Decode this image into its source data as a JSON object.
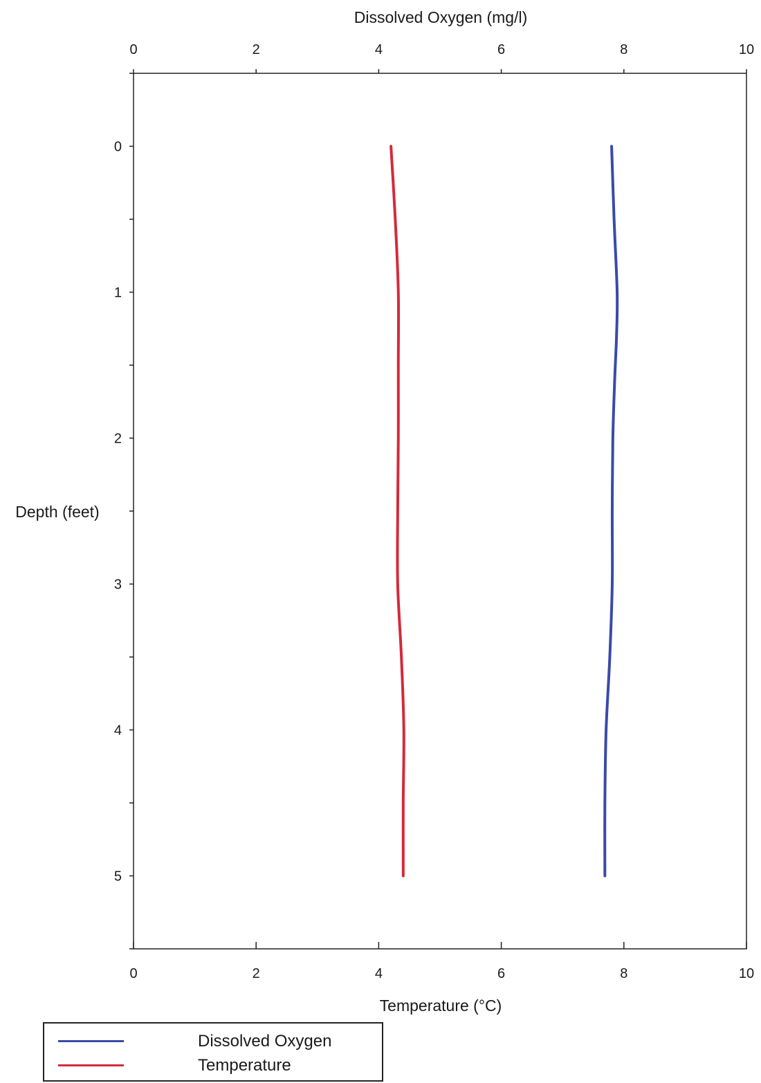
{
  "chart_data": {
    "type": "line",
    "top_axis": {
      "label": "Dissolved Oxygen (mg/l)",
      "range": [
        0,
        10
      ],
      "ticks": [
        0,
        2,
        4,
        6,
        8,
        10
      ]
    },
    "bottom_axis": {
      "label": "Temperature (°C)",
      "range": [
        0,
        10
      ],
      "ticks": [
        0,
        2,
        4,
        6,
        8,
        10
      ]
    },
    "y_axis": {
      "label": "Depth (feet)",
      "range": [
        -0.5,
        5.5
      ],
      "ticks": [
        0,
        1,
        2,
        3,
        4,
        5
      ],
      "inverted": true
    },
    "series": [
      {
        "name": "Dissolved Oxygen",
        "axis": "top",
        "color": "#3a4aa8",
        "points": [
          {
            "value": 7.8,
            "depth": 0.0
          },
          {
            "value": 7.84,
            "depth": 0.5
          },
          {
            "value": 7.89,
            "depth": 1.0
          },
          {
            "value": 7.88,
            "depth": 1.3
          },
          {
            "value": 7.85,
            "depth": 1.6
          },
          {
            "value": 7.82,
            "depth": 2.0
          },
          {
            "value": 7.81,
            "depth": 2.5
          },
          {
            "value": 7.81,
            "depth": 3.0
          },
          {
            "value": 7.77,
            "depth": 3.5
          },
          {
            "value": 7.71,
            "depth": 4.0
          },
          {
            "value": 7.69,
            "depth": 4.5
          },
          {
            "value": 7.69,
            "depth": 5.0
          }
        ]
      },
      {
        "name": "Temperature",
        "axis": "bottom",
        "color": "#d42a3a",
        "points": [
          {
            "value": 4.2,
            "depth": 0.0
          },
          {
            "value": 4.27,
            "depth": 0.5
          },
          {
            "value": 4.32,
            "depth": 1.0
          },
          {
            "value": 4.32,
            "depth": 1.5
          },
          {
            "value": 4.32,
            "depth": 2.0
          },
          {
            "value": 4.31,
            "depth": 2.5
          },
          {
            "value": 4.31,
            "depth": 3.0
          },
          {
            "value": 4.37,
            "depth": 3.5
          },
          {
            "value": 4.41,
            "depth": 4.0
          },
          {
            "value": 4.4,
            "depth": 4.5
          },
          {
            "value": 4.4,
            "depth": 5.0
          }
        ]
      }
    ],
    "legend": {
      "placement": "bottom-left",
      "entries": [
        {
          "label": "Dissolved Oxygen",
          "color": "#3a4aa8"
        },
        {
          "label": "Temperature",
          "color": "#d42a3a"
        }
      ]
    }
  }
}
